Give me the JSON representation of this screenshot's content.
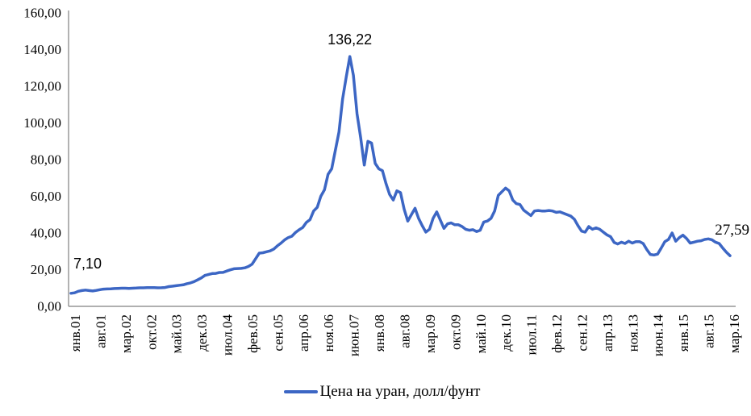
{
  "chart_data": {
    "type": "line",
    "title": "",
    "grid": false,
    "legend_position": "bottom",
    "y_axis": {
      "min": 0,
      "max": 160,
      "tick_step": 20,
      "tick_labels": [
        "0,00",
        "20,00",
        "40,00",
        "60,00",
        "80,00",
        "100,00",
        "120,00",
        "140,00",
        "160,00"
      ]
    },
    "x_axis": {
      "start_label": "янв.01",
      "end_label": "мар.16",
      "tick_interval_months": 7,
      "tick_labels": [
        "янв.01",
        "авг.01",
        "мар.02",
        "окт.02",
        "май.03",
        "дек.03",
        "июл.04",
        "фев.05",
        "сен.05",
        "апр.06",
        "ноя.06",
        "июн.07",
        "янв.08",
        "авг.08",
        "мар.09",
        "окт.09",
        "май.10",
        "дек.10",
        "июл.11",
        "фев.12",
        "сен.12",
        "апр.13",
        "ноя.13",
        "июн.14",
        "янв.15",
        "авг.15",
        "мар.16"
      ]
    },
    "series": [
      {
        "name": "Цена на уран, долл/фунт",
        "color": "#3C66C4",
        "values": [
          7.1,
          7.4,
          8.2,
          8.6,
          8.9,
          8.6,
          8.4,
          8.7,
          9.1,
          9.4,
          9.5,
          9.6,
          9.7,
          9.8,
          9.9,
          9.9,
          9.8,
          9.9,
          10.0,
          10.1,
          10.1,
          10.2,
          10.2,
          10.2,
          10.1,
          10.15,
          10.3,
          10.75,
          11.0,
          11.25,
          11.5,
          11.75,
          12.35,
          12.8,
          13.5,
          14.45,
          15.5,
          16.9,
          17.4,
          17.9,
          18.0,
          18.45,
          18.5,
          19.25,
          19.9,
          20.5,
          20.6,
          20.7,
          21.0,
          21.75,
          23.0,
          26.0,
          29.0,
          29.25,
          29.75,
          30.25,
          31.25,
          33.0,
          34.5,
          36.25,
          37.5,
          38.25,
          40.25,
          41.75,
          43.0,
          45.75,
          47.25,
          52.0,
          54.0,
          60.0,
          63.5,
          72.0,
          75.0,
          85.0,
          95.0,
          113.0,
          125.0,
          136.22,
          126.0,
          105.0,
          92.0,
          77.0,
          90.0,
          89.0,
          78.0,
          75.0,
          74.0,
          67.0,
          61.0,
          58.0,
          63.0,
          62.0,
          53.0,
          46.5,
          50.0,
          53.5,
          48.0,
          44.0,
          40.5,
          42.0,
          48.0,
          51.5,
          47.0,
          42.5,
          45.0,
          45.5,
          44.5,
          44.5,
          43.5,
          42.0,
          41.5,
          41.8,
          40.8,
          41.5,
          46.0,
          46.5,
          48.0,
          52.0,
          60.5,
          62.5,
          64.5,
          63.0,
          58.0,
          56.0,
          55.5,
          52.5,
          51.0,
          49.5,
          52.0,
          52.25,
          52.0,
          52.0,
          52.25,
          52.0,
          51.25,
          51.5,
          50.75,
          50.0,
          49.25,
          47.5,
          44.0,
          41.0,
          40.5,
          43.5,
          42.0,
          42.8,
          42.0,
          40.5,
          39.0,
          38.0,
          34.8,
          34.0,
          35.0,
          34.3,
          35.5,
          34.5,
          35.3,
          35.3,
          34.3,
          31.0,
          28.3,
          28.0,
          28.5,
          31.8,
          35.3,
          36.5,
          40.0,
          35.5,
          37.5,
          38.8,
          37.0,
          34.5,
          35.0,
          35.5,
          35.8,
          36.5,
          36.8,
          36.3,
          35.0,
          34.3,
          31.8,
          29.5,
          27.59
        ]
      }
    ],
    "annotations": [
      {
        "text": "7,10",
        "value": 7.1,
        "month_index": 0
      },
      {
        "text": "136,22",
        "value": 136.22,
        "month_index": 77
      },
      {
        "text": "27,59",
        "value": 27.59,
        "month_index": 182
      }
    ]
  }
}
